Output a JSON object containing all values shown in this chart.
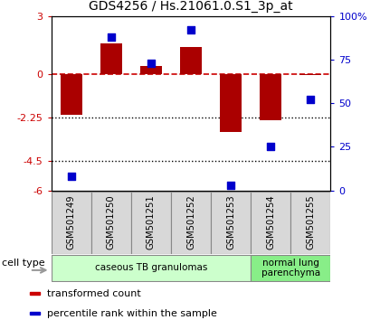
{
  "title": "GDS4256 / Hs.21061.0.S1_3p_at",
  "samples": [
    "GSM501249",
    "GSM501250",
    "GSM501251",
    "GSM501252",
    "GSM501253",
    "GSM501254",
    "GSM501255"
  ],
  "transformed_count": [
    -2.1,
    1.6,
    0.4,
    1.4,
    -3.0,
    -2.4,
    -0.05
  ],
  "percentile_rank": [
    8,
    88,
    73,
    92,
    3,
    25,
    52
  ],
  "ylim_left": [
    -6,
    3
  ],
  "ylim_right": [
    0,
    100
  ],
  "yticks_left": [
    3,
    0,
    -2.25,
    -4.5,
    -6
  ],
  "ytick_labels_left": [
    "3",
    "0",
    "-2.25",
    "-4.5",
    "-6"
  ],
  "yticks_right": [
    100,
    75,
    50,
    25,
    0
  ],
  "ytick_labels_right": [
    "100%",
    "75",
    "50",
    "25",
    "0"
  ],
  "hline_zero": {
    "color": "#cc0000",
    "linestyle": "dashed",
    "lw": 1.2
  },
  "hline_dotted": [
    {
      "y": -2.25
    },
    {
      "y": -4.5
    }
  ],
  "bar_color": "#aa0000",
  "dot_color": "#0000cc",
  "dot_size": 40,
  "cell_types": [
    {
      "label": "caseous TB granulomas",
      "span": [
        0,
        4
      ],
      "color": "#ccffcc"
    },
    {
      "label": "normal lung\nparenchyma",
      "span": [
        5,
        6
      ],
      "color": "#88ee88"
    }
  ],
  "legend_items": [
    {
      "color": "#cc0000",
      "label": "transformed count"
    },
    {
      "color": "#0000cc",
      "label": "percentile rank within the sample"
    }
  ],
  "cell_type_label": "cell type",
  "arrow_color": "#999999",
  "sample_box_color": "#d8d8d8",
  "title_fontsize": 10
}
